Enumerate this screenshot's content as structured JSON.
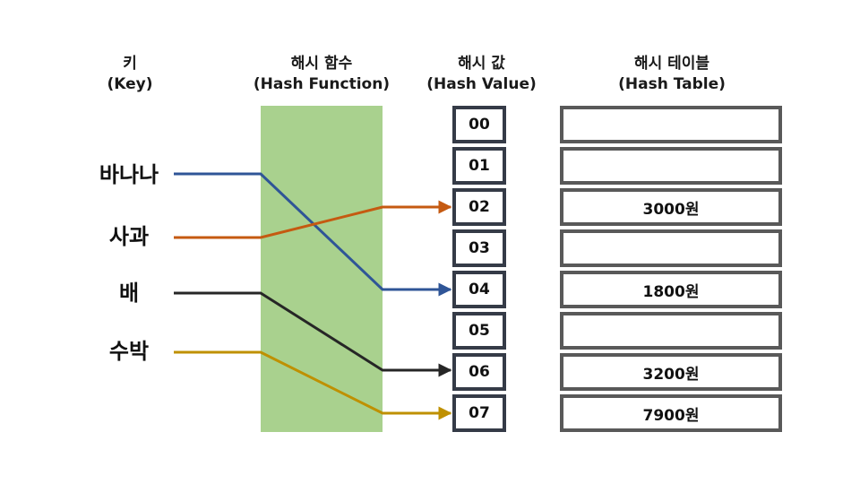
{
  "headers": {
    "key": {
      "title": "키",
      "sub": "(Key)"
    },
    "hash_function": {
      "title": "해시 함수",
      "sub": "(Hash Function)"
    },
    "hash_value": {
      "title": "해시 값",
      "sub": "(Hash Value)"
    },
    "hash_table": {
      "title": "해시 테이블",
      "sub": "(Hash Table)"
    }
  },
  "keys": [
    "바나나",
    "사과",
    "배",
    "수박"
  ],
  "hash_values": [
    "00",
    "01",
    "02",
    "03",
    "04",
    "05",
    "06",
    "07"
  ],
  "table_values": [
    "",
    "",
    "3000원",
    "",
    "1800원",
    "",
    "3200원",
    "7900원"
  ],
  "mappings": [
    {
      "key": "바나나",
      "hash_value": "04",
      "color": "#2f5597"
    },
    {
      "key": "사과",
      "hash_value": "02",
      "color": "#c55a11"
    },
    {
      "key": "배",
      "hash_value": "06",
      "color": "#262626"
    },
    {
      "key": "수박",
      "hash_value": "07",
      "color": "#bf9000"
    }
  ],
  "colors": {
    "hash_function_fill": "#a9d18e",
    "hash_value_border": "#353b47",
    "hash_table_border": "#595959"
  }
}
